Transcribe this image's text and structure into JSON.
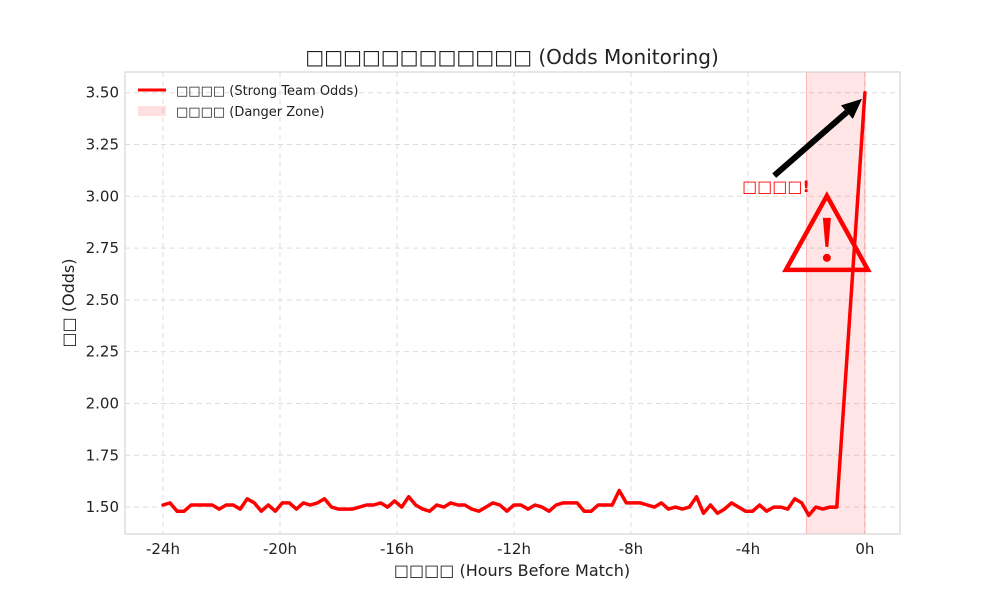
{
  "chart_data": {
    "type": "line",
    "title": "□□□□□□□□□□□□ (Odds Monitoring)",
    "xlabel": "□□□□ (Hours Before Match)",
    "ylabel": "□□ (Odds)",
    "xlim": [
      -25.3,
      1.2
    ],
    "ylim": [
      1.37,
      3.6
    ],
    "x_ticks": [
      -24,
      -20,
      -16,
      -12,
      -8,
      -4,
      0
    ],
    "x_tick_labels": [
      "-24h",
      "-20h",
      "-16h",
      "-12h",
      "-8h",
      "-4h",
      "0h"
    ],
    "y_ticks": [
      1.5,
      1.75,
      2.0,
      2.25,
      2.5,
      2.75,
      3.0,
      3.25,
      3.5
    ],
    "y_tick_labels": [
      "1.50",
      "1.75",
      "2.00",
      "2.25",
      "2.50",
      "2.75",
      "3.00",
      "3.25",
      "3.50"
    ],
    "grid": true,
    "legend_position": "top-left",
    "series": [
      {
        "name": "□□□□ (Strong Team Odds)",
        "color": "#ff0000",
        "x": [
          -24.0,
          -23.76,
          -23.52,
          -23.28,
          -23.04,
          -22.8,
          -22.56,
          -22.32,
          -22.08,
          -21.84,
          -21.6,
          -21.36,
          -21.12,
          -20.88,
          -20.64,
          -20.4,
          -20.16,
          -19.92,
          -19.68,
          -19.44,
          -19.2,
          -18.96,
          -18.72,
          -18.48,
          -18.24,
          -18.0,
          -17.76,
          -17.52,
          -17.28,
          -17.04,
          -16.8,
          -16.56,
          -16.32,
          -16.08,
          -15.84,
          -15.6,
          -15.36,
          -15.12,
          -14.88,
          -14.64,
          -14.4,
          -14.16,
          -13.92,
          -13.68,
          -13.44,
          -13.2,
          -12.96,
          -12.72,
          -12.48,
          -12.24,
          -12.0,
          -11.76,
          -11.52,
          -11.28,
          -11.04,
          -10.8,
          -10.56,
          -10.32,
          -10.08,
          -9.84,
          -9.6,
          -9.36,
          -9.12,
          -8.88,
          -8.64,
          -8.4,
          -8.16,
          -7.92,
          -7.68,
          -7.44,
          -7.2,
          -6.96,
          -6.72,
          -6.48,
          -6.24,
          -6.0,
          -5.76,
          -5.52,
          -5.28,
          -5.04,
          -4.8,
          -4.56,
          -4.32,
          -4.08,
          -3.84,
          -3.6,
          -3.36,
          -3.12,
          -2.88,
          -2.64,
          -2.4,
          -2.16,
          -1.92,
          -1.68,
          -1.44,
          -1.2,
          -0.96,
          0.0
        ],
        "values": [
          1.51,
          1.52,
          1.48,
          1.48,
          1.51,
          1.51,
          1.51,
          1.51,
          1.49,
          1.51,
          1.51,
          1.49,
          1.54,
          1.52,
          1.48,
          1.51,
          1.48,
          1.52,
          1.52,
          1.49,
          1.52,
          1.51,
          1.52,
          1.54,
          1.5,
          1.49,
          1.49,
          1.49,
          1.5,
          1.51,
          1.51,
          1.52,
          1.5,
          1.53,
          1.5,
          1.55,
          1.51,
          1.49,
          1.48,
          1.51,
          1.5,
          1.52,
          1.51,
          1.51,
          1.49,
          1.48,
          1.5,
          1.52,
          1.51,
          1.48,
          1.51,
          1.51,
          1.49,
          1.51,
          1.5,
          1.48,
          1.51,
          1.52,
          1.52,
          1.52,
          1.48,
          1.48,
          1.51,
          1.51,
          1.51,
          1.58,
          1.52,
          1.52,
          1.52,
          1.51,
          1.5,
          1.52,
          1.49,
          1.5,
          1.49,
          1.5,
          1.55,
          1.47,
          1.51,
          1.47,
          1.49,
          1.52,
          1.5,
          1.48,
          1.48,
          1.51,
          1.48,
          1.5,
          1.5,
          1.49,
          1.54,
          1.52,
          1.46,
          1.5,
          1.49,
          1.5,
          1.5,
          3.5
        ]
      }
    ],
    "shaded_regions": [
      {
        "name": "□□□□ (Danger Zone)",
        "x_start": -2.0,
        "x_end": 0.0,
        "color": "#ff0000",
        "opacity": 0.1
      }
    ],
    "annotations": [
      {
        "text": "□□□□!",
        "color": "#ff0000",
        "x": -4.2,
        "y": 3.02,
        "arrow_from": [
          -3.1,
          3.1
        ],
        "arrow_to": [
          -0.1,
          3.47
        ]
      }
    ],
    "warning_icon": {
      "icon": "warning-triangle-icon",
      "glyph": "!",
      "color": "#ff0000",
      "x": -1.3,
      "y": 2.65
    }
  }
}
